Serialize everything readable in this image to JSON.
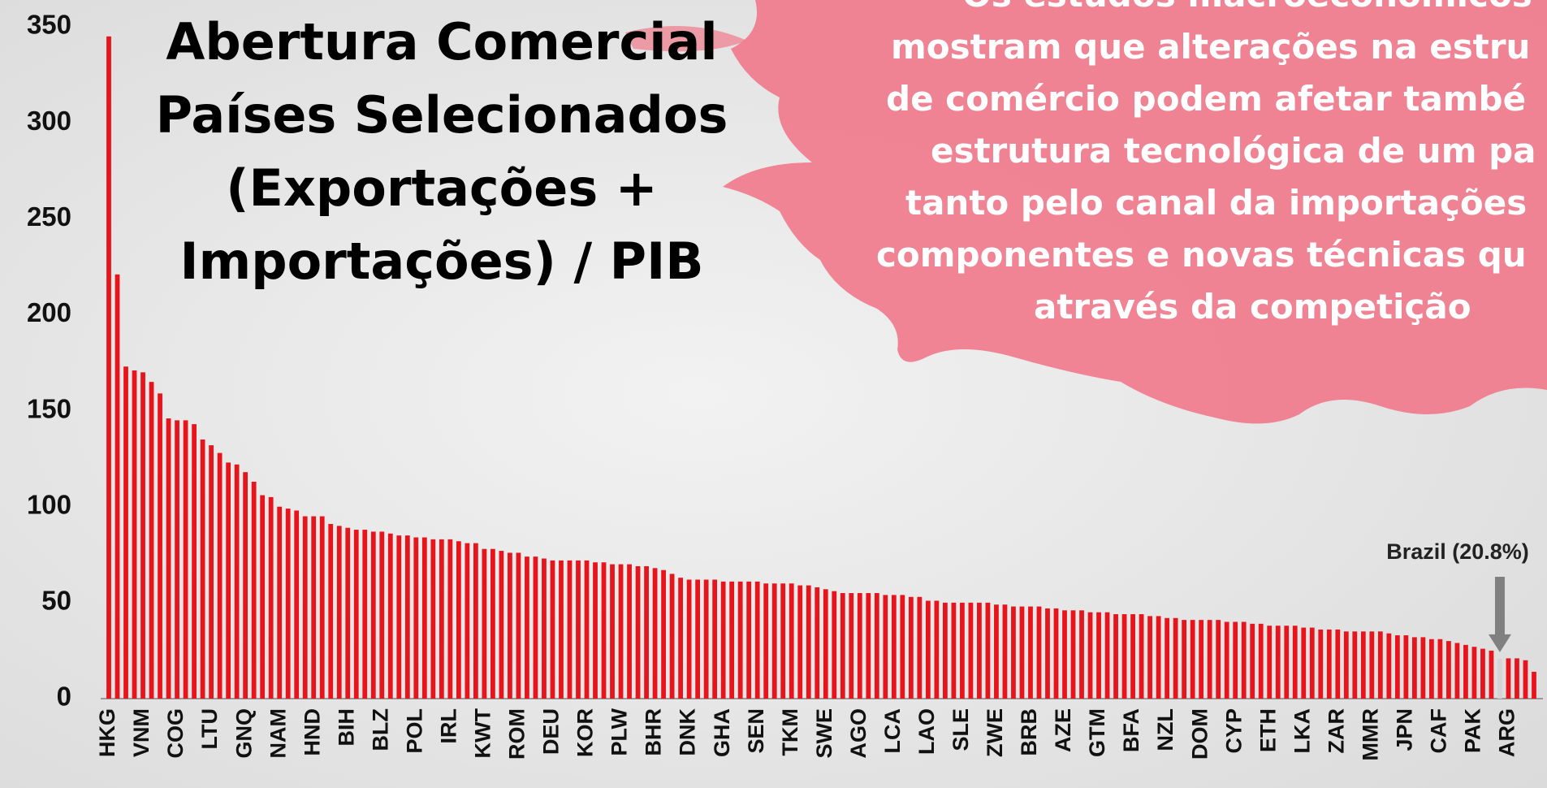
{
  "chart_data": {
    "type": "bar",
    "title_lines": [
      "Abertura Comercial",
      "Países Selecionados",
      "(Exportações +",
      "Importações) / PIB"
    ],
    "note_lines": [
      "Os estudos macroeconômicos",
      "mostram que alterações na estru",
      "de comércio podem afetar també",
      "estrutura tecnológica de um pa",
      "tanto pelo canal da importações",
      "componentes e novas técnicas qu",
      "através da competição"
    ],
    "categories": [
      "HKG",
      null,
      null,
      null,
      "VNM",
      null,
      null,
      null,
      "COG",
      null,
      null,
      null,
      "LTU",
      null,
      null,
      null,
      "GNQ",
      null,
      null,
      null,
      "NAM",
      null,
      null,
      null,
      "HND",
      null,
      null,
      null,
      "BIH",
      null,
      null,
      null,
      "BLZ",
      null,
      null,
      null,
      "POL",
      null,
      null,
      null,
      "IRL",
      null,
      null,
      null,
      "KWT",
      null,
      null,
      null,
      "ROM",
      null,
      null,
      null,
      "DEU",
      null,
      null,
      null,
      "KOR",
      null,
      null,
      null,
      "PLW",
      null,
      null,
      null,
      "BHR",
      null,
      null,
      null,
      "DNK",
      null,
      null,
      null,
      "GHA",
      null,
      null,
      null,
      "SEN",
      null,
      null,
      null,
      "TKM",
      null,
      null,
      null,
      "SWE",
      null,
      null,
      null,
      "AGO",
      null,
      null,
      null,
      "LCA",
      null,
      null,
      null,
      "LAO",
      null,
      null,
      null,
      "SLE",
      null,
      null,
      null,
      "ZWE",
      null,
      null,
      null,
      "BRB",
      null,
      null,
      null,
      "AZE",
      null,
      null,
      null,
      "GTM",
      null,
      null,
      null,
      "BFA",
      null,
      null,
      null,
      "NZL",
      null,
      null,
      null,
      "DOM",
      null,
      null,
      null,
      "CYP",
      null,
      null,
      null,
      "ETH",
      null,
      null,
      null,
      "LKA",
      null,
      null,
      null,
      "ZAR",
      null,
      null,
      null,
      "MMR",
      null,
      null,
      null,
      "JPN",
      null,
      null,
      null,
      "CAF",
      null,
      null,
      null,
      "PAK",
      null,
      null,
      null,
      "ARG",
      null,
      null,
      null
    ],
    "values": [
      345,
      221,
      173,
      171,
      170,
      165,
      159,
      146,
      145,
      145,
      143,
      135,
      132,
      128,
      123,
      122,
      118,
      113,
      106,
      105,
      100,
      99,
      98,
      95,
      95,
      95,
      91,
      90,
      89,
      88,
      88,
      87,
      87,
      86,
      85,
      85,
      84,
      84,
      83,
      83,
      83,
      82,
      81,
      81,
      78,
      78,
      77,
      76,
      76,
      74,
      74,
      73,
      72,
      72,
      72,
      72,
      72,
      71,
      71,
      70,
      70,
      70,
      69,
      69,
      68,
      67,
      65,
      63,
      62,
      62,
      62,
      62,
      61,
      61,
      61,
      61,
      61,
      60,
      60,
      60,
      60,
      59,
      59,
      58,
      57,
      56,
      55,
      55,
      55,
      55,
      55,
      54,
      54,
      54,
      53,
      53,
      51,
      51,
      50,
      50,
      50,
      50,
      50,
      50,
      49,
      49,
      48,
      48,
      48,
      48,
      47,
      47,
      46,
      46,
      46,
      45,
      45,
      45,
      44,
      44,
      44,
      44,
      43,
      43,
      42,
      42,
      41,
      41,
      41,
      41,
      41,
      40,
      40,
      40,
      39,
      39,
      38,
      38,
      38,
      38,
      37,
      37,
      36,
      36,
      36,
      35,
      35,
      35,
      35,
      35,
      34,
      33,
      33,
      32,
      32,
      31,
      31,
      30,
      29,
      28,
      27,
      26,
      25,
      20.8,
      21,
      21,
      20,
      14
    ],
    "color": "#e8141b",
    "annotation": {
      "text": "Brazil (20.8%)",
      "value": 20.8,
      "color": "#d4d4d4"
    },
    "ylim": [
      0,
      350
    ],
    "yticks": [
      0,
      50,
      100,
      150,
      200,
      250,
      300,
      350
    ],
    "grid": false
  }
}
